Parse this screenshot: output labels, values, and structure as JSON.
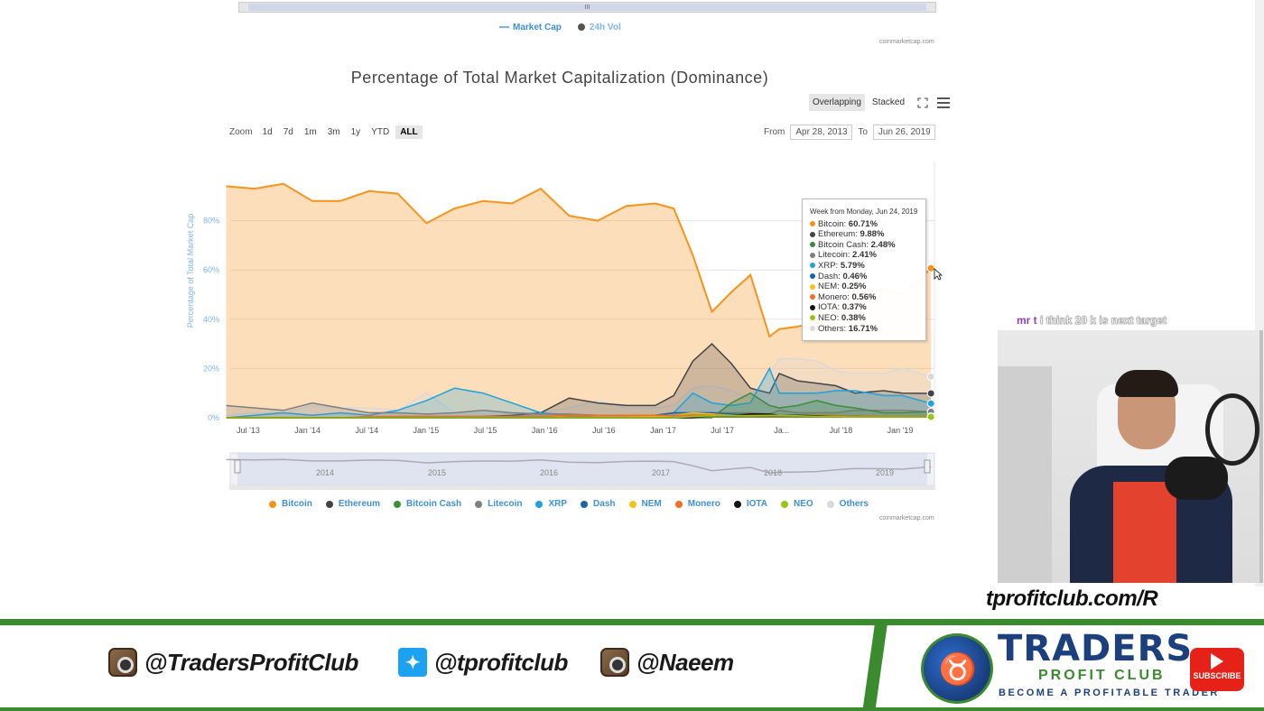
{
  "prev_chart": {
    "legend": [
      "Market Cap",
      "24h Vol"
    ],
    "credit": "coinmarketcap.com"
  },
  "chart_data": {
    "type": "area",
    "title": "Percentage of Total Market Capitalization (Dominance)",
    "ylabel": "Percentage of Total Market Cap",
    "ylim": [
      0,
      100
    ],
    "y_ticks": [
      "0%",
      "20%",
      "40%",
      "60%",
      "80%"
    ],
    "x_ticks": [
      "Jul '13",
      "Jan '14",
      "Jul '14",
      "Jan '15",
      "Jul '15",
      "Jan '16",
      "Jul '16",
      "Jan '17",
      "Jul '17",
      "Ja...",
      "Jul '18",
      "Jan '19"
    ],
    "navigator_ticks": [
      "2014",
      "2015",
      "2016",
      "2017",
      "2018",
      "2019"
    ],
    "x": [
      "2013-04",
      "2013-07",
      "2013-10",
      "2014-01",
      "2014-04",
      "2014-07",
      "2014-10",
      "2015-01",
      "2015-04",
      "2015-07",
      "2015-10",
      "2016-01",
      "2016-04",
      "2016-07",
      "2016-10",
      "2017-01",
      "2017-03",
      "2017-05",
      "2017-07",
      "2017-09",
      "2017-11",
      "2018-01",
      "2018-02",
      "2018-04",
      "2018-06",
      "2018-08",
      "2018-10",
      "2019-01",
      "2019-03",
      "2019-06"
    ],
    "series": [
      {
        "name": "Bitcoin",
        "color": "#f7931a",
        "values": [
          94,
          93,
          95,
          88,
          88,
          92,
          91,
          79,
          85,
          88,
          87,
          93,
          82,
          80,
          86,
          87,
          85,
          66,
          43,
          51,
          58,
          33,
          36,
          37,
          39,
          47,
          53,
          52,
          50,
          60.71
        ]
      },
      {
        "name": "Ethereum",
        "color": "#434348",
        "values": [
          0,
          0,
          0,
          0,
          0,
          0,
          0,
          0,
          0,
          0.5,
          1,
          2,
          8,
          6,
          5,
          5,
          9,
          23,
          30,
          22,
          12,
          10,
          18,
          15,
          14,
          13,
          10,
          11,
          10,
          9.88
        ]
      },
      {
        "name": "Bitcoin Cash",
        "color": "#3d8c3a",
        "values": [
          0,
          0,
          0,
          0,
          0,
          0,
          0,
          0,
          0,
          0,
          0,
          0,
          0,
          0,
          0,
          0,
          0,
          0,
          0,
          6,
          10,
          5,
          4,
          5,
          7,
          5,
          4,
          2,
          2,
          2.48
        ]
      },
      {
        "name": "Litecoin",
        "color": "#7f7f7f",
        "values": [
          5,
          4,
          3,
          6,
          4,
          2,
          2,
          1.5,
          2,
          3,
          2,
          1.5,
          1.5,
          1,
          1,
          1,
          1,
          2,
          2,
          2,
          2,
          1.5,
          3,
          2,
          2,
          2,
          3,
          3,
          3,
          2.41
        ]
      },
      {
        "name": "XRP",
        "color": "#1fa2dd",
        "values": [
          0,
          1,
          2,
          1,
          2,
          1,
          3,
          7,
          12,
          10,
          6,
          2,
          1,
          1,
          1,
          1,
          2,
          10,
          6,
          5,
          6,
          20,
          10,
          10,
          10,
          11,
          11,
          9,
          9,
          5.79
        ]
      },
      {
        "name": "Dash",
        "color": "#1565a8",
        "values": [
          0,
          0,
          0,
          0,
          0,
          0,
          0.5,
          0.5,
          0.5,
          0.5,
          0.5,
          0.5,
          0.5,
          1,
          1,
          1,
          2,
          2,
          2,
          1.5,
          1,
          1,
          1,
          0.8,
          0.6,
          0.5,
          0.5,
          0.5,
          0.5,
          0.46
        ]
      },
      {
        "name": "NEM",
        "color": "#f4c318",
        "values": [
          0,
          0,
          0,
          0,
          0,
          0,
          0,
          0,
          0.3,
          0.3,
          0.3,
          0.3,
          0.3,
          0.3,
          0.3,
          0.5,
          1,
          2,
          1.5,
          1,
          1,
          1.5,
          1,
          0.8,
          0.6,
          0.5,
          0.4,
          0.3,
          0.3,
          0.25
        ]
      },
      {
        "name": "Monero",
        "color": "#f36f21",
        "values": [
          0,
          0,
          0,
          0,
          0,
          0.5,
          0.5,
          0.5,
          0.5,
          0.5,
          0.5,
          0.5,
          1,
          1,
          1,
          1,
          1,
          1,
          1,
          1,
          1,
          1,
          1,
          1,
          1,
          0.8,
          0.7,
          0.6,
          0.6,
          0.56
        ]
      },
      {
        "name": "IOTA",
        "color": "#111111",
        "values": [
          0,
          0,
          0,
          0,
          0,
          0,
          0,
          0,
          0,
          0,
          0,
          0,
          0,
          0,
          0,
          0,
          0,
          0,
          0.8,
          1,
          1.5,
          1.5,
          1,
          1,
          0.8,
          0.5,
          0.5,
          0.4,
          0.4,
          0.37
        ]
      },
      {
        "name": "NEO",
        "color": "#9bc31a",
        "values": [
          0,
          0,
          0,
          0,
          0,
          0,
          0,
          0,
          0,
          0,
          0,
          0,
          0,
          0,
          0,
          0,
          0,
          0.5,
          0.8,
          1,
          0.8,
          1,
          1,
          0.8,
          0.6,
          0.5,
          0.4,
          0.4,
          0.4,
          0.38
        ]
      },
      {
        "name": "Others",
        "color": "#d9d9d9",
        "values": [
          1,
          2,
          2,
          5,
          4,
          4,
          3,
          10,
          2,
          3,
          2,
          2,
          4,
          7,
          4,
          4,
          5,
          12,
          13,
          11,
          8,
          18,
          24,
          24,
          23,
          19,
          18,
          18,
          20,
          16.71
        ]
      }
    ],
    "tooltip": {
      "header": "Week from Monday, Jun 24, 2019",
      "rows": [
        {
          "name": "Bitcoin",
          "value": "60.71%",
          "color": "#f7931a"
        },
        {
          "name": "Ethereum",
          "value": "9.88%",
          "color": "#434348"
        },
        {
          "name": "Bitcoin Cash",
          "value": "2.48%",
          "color": "#3d8c3a"
        },
        {
          "name": "Litecoin",
          "value": "2.41%",
          "color": "#7f7f7f"
        },
        {
          "name": "XRP",
          "value": "5.79%",
          "color": "#1fa2dd"
        },
        {
          "name": "Dash",
          "value": "0.46%",
          "color": "#1565a8"
        },
        {
          "name": "NEM",
          "value": "0.25%",
          "color": "#f4c318"
        },
        {
          "name": "Monero",
          "value": "0.56%",
          "color": "#f36f21"
        },
        {
          "name": "IOTA",
          "value": "0.37%",
          "color": "#111111"
        },
        {
          "name": "NEO",
          "value": "0.38%",
          "color": "#9bc31a"
        },
        {
          "name": "Others",
          "value": "16.71%",
          "color": "#d9d9d9"
        }
      ]
    }
  },
  "controls": {
    "modes": [
      "Overlapping",
      "Stacked"
    ],
    "active_mode": "Overlapping",
    "zoom_label": "Zoom",
    "zoom_options": [
      "1d",
      "7d",
      "1m",
      "3m",
      "1y",
      "YTD",
      "ALL"
    ],
    "active_zoom": "ALL",
    "from_label": "From",
    "from_value": "Apr 28, 2013",
    "to_label": "To",
    "to_value": "Jun 26, 2019"
  },
  "credit": "coinmarketcap.com",
  "chat": {
    "user": "mr t",
    "message": "i think 20 k is next target"
  },
  "site_url": "tprofitclub.com/R",
  "banner": {
    "instagram_1": "@TradersProfitClub",
    "twitter": "@tprofitclub",
    "instagram_2": "@Naeem",
    "logo_line1": "TRADERS",
    "logo_line2": "PROFIT CLUB",
    "logo_line3": "BECOME A PROFITABLE TRADER",
    "subscribe": "SUBSCRIBE"
  }
}
